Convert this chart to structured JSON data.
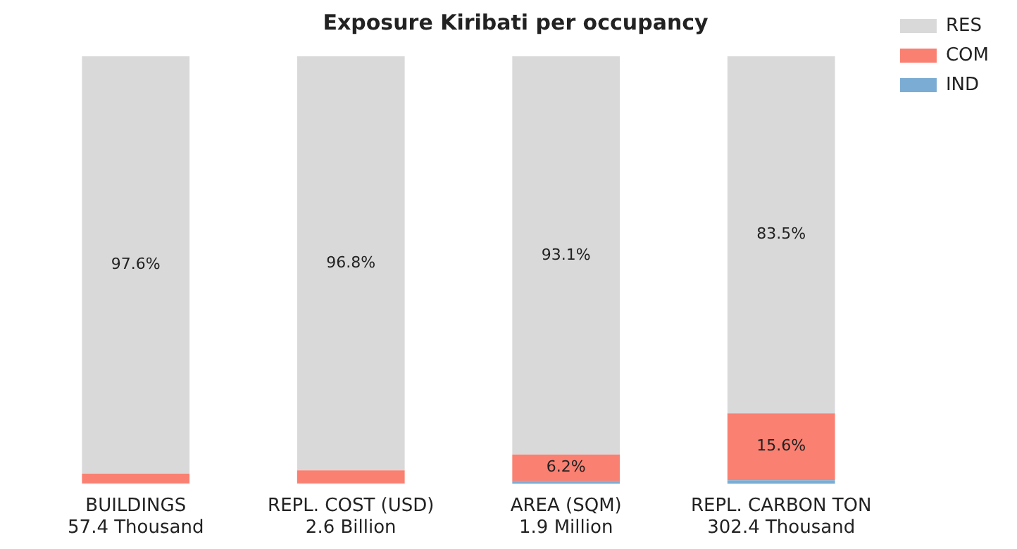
{
  "chart_data": {
    "type": "bar",
    "title": "Exposure Kiribati per occupancy",
    "stacked": true,
    "legend": "top right",
    "grid": false,
    "categories": [
      "BUILDINGS\n57.4 Thousand",
      "REPL. COST (USD)\n2.6 Billion",
      "AREA (SQM)\n1.9 Million",
      "REPL. CARBON TON\n302.4 Thousand"
    ],
    "series": [
      {
        "name": "IND",
        "color": "#7bacd3",
        "values": [
          0.2,
          0.2,
          0.7,
          0.9
        ],
        "value_labels": [
          null,
          null,
          null,
          null
        ]
      },
      {
        "name": "COM",
        "color": "#fa8072",
        "values": [
          2.2,
          3.0,
          6.2,
          15.6
        ],
        "value_labels": [
          null,
          null,
          "6.2%",
          "15.6%"
        ]
      },
      {
        "name": "RES",
        "color": "#d9d9d9",
        "values": [
          97.6,
          96.8,
          93.1,
          83.5
        ],
        "value_labels": [
          "97.6%",
          "96.8%",
          "93.1%",
          "83.5%"
        ]
      }
    ]
  }
}
